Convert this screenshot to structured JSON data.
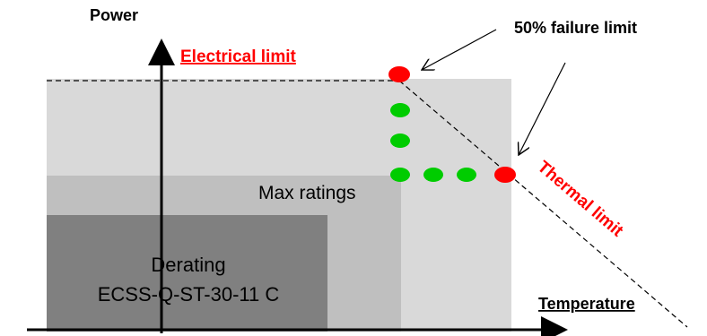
{
  "labels": {
    "power": "Power",
    "temperature": "Temperature",
    "electrical_limit": "Electrical limit",
    "failure_limit": "50% failure limit",
    "thermal_limit": "Thermal limit",
    "max_ratings": "Max ratings",
    "derating_line1": "Derating",
    "derating_line2": "ECSS-Q-ST-30-11 C"
  },
  "colors": {
    "zone_outer": "#d9d9d9",
    "zone_mid": "#bfbfbf",
    "zone_inner": "#808080",
    "red_point": "#ff0000",
    "green_point": "#00cc00",
    "axis": "#000000",
    "red_text": "#ff0000"
  },
  "icons": {
    "red_points": "red-dot",
    "green_points": "green-dot",
    "pointer_arrows": "arrow-pointer"
  }
}
